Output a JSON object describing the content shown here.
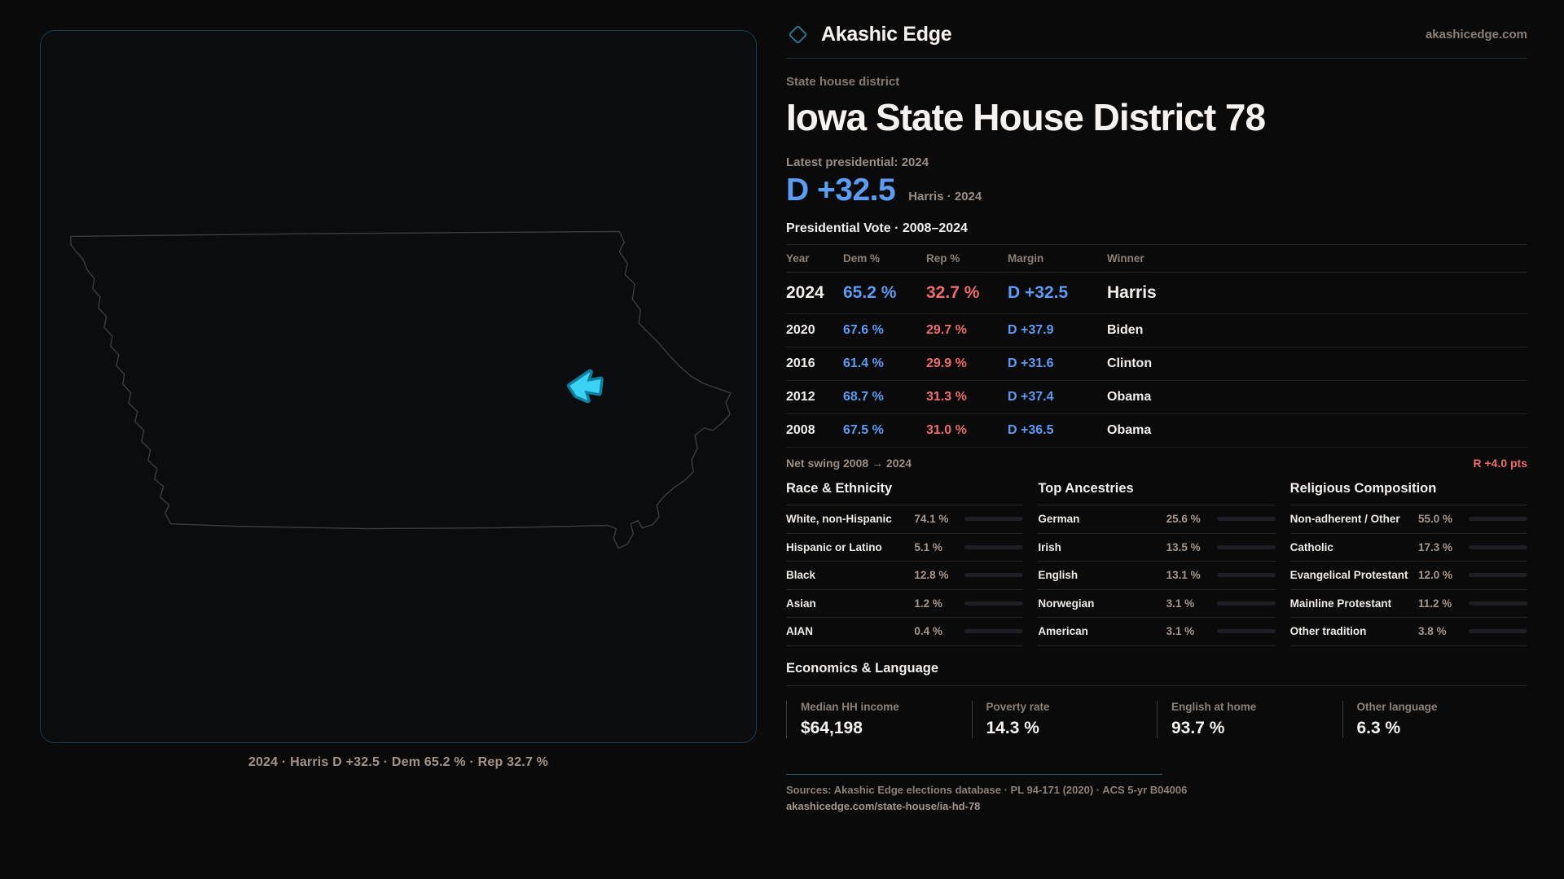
{
  "brand": {
    "name": "Akashic Edge",
    "domain": "akashicedge.com"
  },
  "page": {
    "kicker": "State house district",
    "title": "Iowa State House District 78",
    "latest_label": "Latest presidential: 2024",
    "margin_big": "D +32.5",
    "margin_big_sub": "Harris · 2024"
  },
  "colors": {
    "dem": "#5b9cf5",
    "rep": "#ee6c6c",
    "district": "#3ad2f5",
    "district_glow": "#0d7e9e"
  },
  "table": {
    "title": "Presidential Vote · 2008–2024",
    "columns": {
      "year": "Year",
      "dem": "Dem %",
      "rep": "Rep %",
      "margin": "Margin",
      "winner": "Winner"
    },
    "rows": [
      {
        "year": "2024",
        "dem": "65.2 %",
        "rep": "32.7 %",
        "margin": "D +32.5",
        "winner": "Harris"
      },
      {
        "year": "2020",
        "dem": "67.6 %",
        "rep": "29.7 %",
        "margin": "D +37.9",
        "winner": "Biden"
      },
      {
        "year": "2016",
        "dem": "61.4 %",
        "rep": "29.9 %",
        "margin": "D +31.6",
        "winner": "Clinton"
      },
      {
        "year": "2012",
        "dem": "68.7 %",
        "rep": "31.3 %",
        "margin": "D +37.4",
        "winner": "Obama"
      },
      {
        "year": "2008",
        "dem": "67.5 %",
        "rep": "31.0 %",
        "margin": "D +36.5",
        "winner": "Obama"
      }
    ],
    "net_swing_label": "Net swing 2008 → 2024",
    "net_swing_value": "R +4.0 pts"
  },
  "demographics": [
    {
      "title": "Race & Ethnicity",
      "rows": [
        {
          "label": "White, non-Hispanic",
          "value": "74.1 %",
          "pct": 74.1,
          "color": "#93a8c7"
        },
        {
          "label": "Hispanic or Latino",
          "value": "5.1 %",
          "pct": 5.1,
          "color": "#e8971f"
        },
        {
          "label": "Black",
          "value": "12.8 %",
          "pct": 12.8,
          "color": "#9c8bf0"
        },
        {
          "label": "Asian",
          "value": "1.2 %",
          "pct": 1.2,
          "color": "#2fd6ad"
        },
        {
          "label": "AIAN",
          "value": "0.4 %",
          "pct": 0.4,
          "color": "#5a5b60"
        }
      ]
    },
    {
      "title": "Top Ancestries",
      "rows": [
        {
          "label": "German",
          "value": "25.6 %",
          "pct": 25.6,
          "color": "#8fa6c4"
        },
        {
          "label": "Irish",
          "value": "13.5 %",
          "pct": 13.5,
          "color": "#8fa6c4"
        },
        {
          "label": "English",
          "value": "13.1 %",
          "pct": 13.1,
          "color": "#8fa6c4"
        },
        {
          "label": "Norwegian",
          "value": "3.1 %",
          "pct": 3.1,
          "color": "#8fa6c4"
        },
        {
          "label": "American",
          "value": "3.1 %",
          "pct": 3.1,
          "color": "#8fa6c4"
        }
      ]
    },
    {
      "title": "Religious Composition",
      "rows": [
        {
          "label": "Non-adherent / Other",
          "value": "55.0 %",
          "pct": 55.0,
          "color": "#7e8ca3"
        },
        {
          "label": "Catholic",
          "value": "17.3 %",
          "pct": 17.3,
          "color": "#e6b52c"
        },
        {
          "label": "Evangelical Protestant",
          "value": "12.0 %",
          "pct": 12.0,
          "color": "#e26b6b"
        },
        {
          "label": "Mainline Protestant",
          "value": "11.2 %",
          "pct": 11.2,
          "color": "#4a90e0"
        },
        {
          "label": "Other tradition",
          "value": "3.8 %",
          "pct": 3.8,
          "color": "#8a8a90"
        }
      ]
    }
  ],
  "economics": {
    "title": "Economics & Language",
    "stats": [
      {
        "label": "Median HH income",
        "value": "$64,198"
      },
      {
        "label": "Poverty rate",
        "value": "14.3 %"
      },
      {
        "label": "English at home",
        "value": "93.7 %"
      },
      {
        "label": "Other language",
        "value": "6.3 %"
      }
    ]
  },
  "map": {
    "caption": "2024 · Harris D +32.5 · Dem 65.2 % · Rep 32.7 %"
  },
  "footer": {
    "sources": "Sources: Akashic Edge elections database · PL 94-171 (2020) · ACS 5-yr B04006",
    "permalink": "akashicedge.com/state-house/ia-hd-78"
  }
}
